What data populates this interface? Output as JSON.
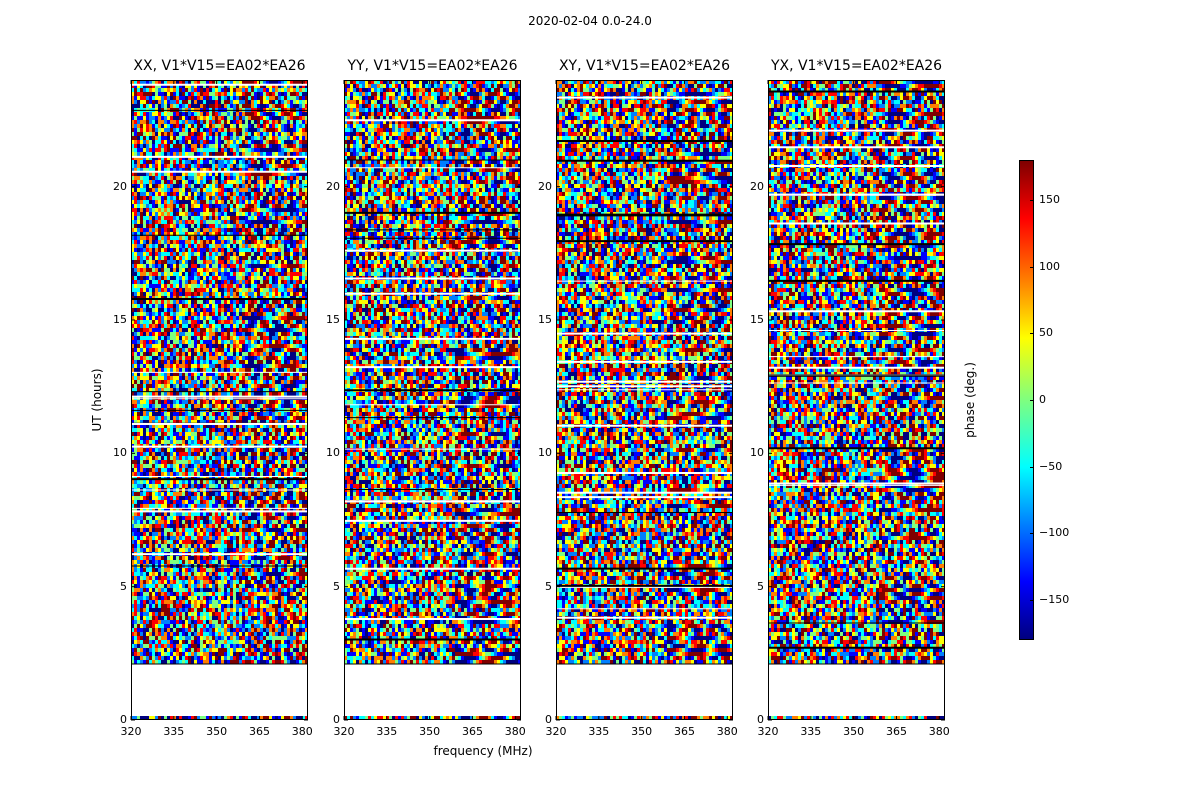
{
  "chart_data": {
    "type": "heatmap",
    "suptitle": "2020-02-04 0.0-24.0",
    "panels": [
      {
        "title": "XX, V1*V15=EA02*EA26"
      },
      {
        "title": "YY, V1*V15=EA02*EA26"
      },
      {
        "title": "XY, V1*V15=EA02*EA26"
      },
      {
        "title": "YX, V1*V15=EA02*EA26"
      }
    ],
    "xlabel": "frequency (MHz)",
    "ylabel": "UT (hours)",
    "xlim": [
      320,
      382
    ],
    "ylim": [
      0,
      24
    ],
    "xticks": [
      320,
      335,
      350,
      365,
      380
    ],
    "yticks": [
      0,
      5,
      10,
      15,
      20
    ],
    "colorbar": {
      "label": "phase (deg.)",
      "range": [
        -180,
        180
      ],
      "ticks": [
        150,
        100,
        50,
        0,
        -50,
        -100,
        -150
      ],
      "tick_labels": [
        "150",
        "100",
        "50",
        "0",
        "−50",
        "−100",
        "−150"
      ],
      "colormap": "jet",
      "colors": [
        "#00007f",
        "#0000ff",
        "#007fff",
        "#00ffff",
        "#7fff7f",
        "#ffff00",
        "#ff7f00",
        "#ff0000",
        "#7f0000"
      ]
    },
    "data_gap_hours": [
      0.15,
      2.1
    ]
  }
}
